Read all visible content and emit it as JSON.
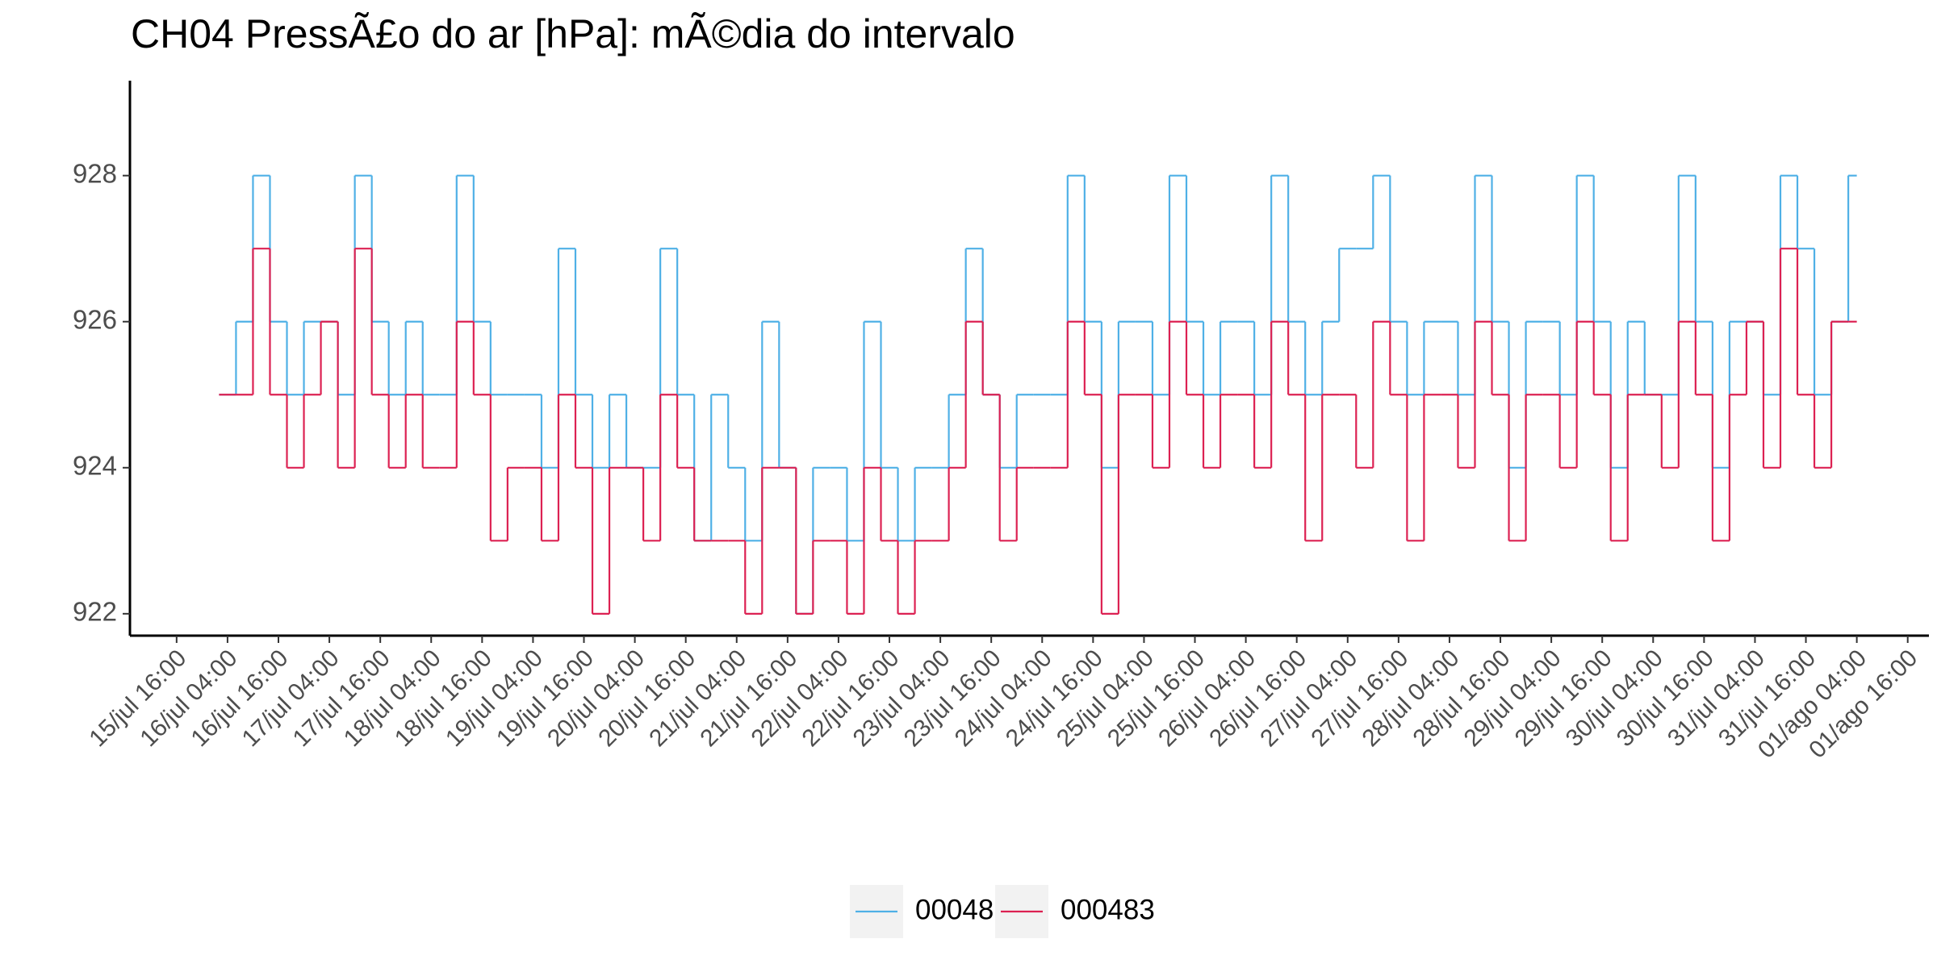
{
  "chart_data": {
    "type": "step",
    "title": "CH04 PressÃ£o do ar [hPa]: mÃ©dia do intervalo",
    "x": [
      "16/jul 02:00",
      "16/jul 06:00",
      "16/jul 10:00",
      "16/jul 14:00",
      "16/jul 18:00",
      "16/jul 22:00",
      "17/jul 02:00",
      "17/jul 06:00",
      "17/jul 10:00",
      "17/jul 14:00",
      "17/jul 18:00",
      "17/jul 22:00",
      "18/jul 02:00",
      "18/jul 06:00",
      "18/jul 10:00",
      "18/jul 14:00",
      "18/jul 18:00",
      "18/jul 22:00",
      "19/jul 02:00",
      "19/jul 06:00",
      "19/jul 10:00",
      "19/jul 14:00",
      "19/jul 18:00",
      "19/jul 22:00",
      "20/jul 02:00",
      "20/jul 06:00",
      "20/jul 10:00",
      "20/jul 14:00",
      "20/jul 18:00",
      "20/jul 22:00",
      "21/jul 02:00",
      "21/jul 06:00",
      "21/jul 10:00",
      "21/jul 14:00",
      "21/jul 18:00",
      "21/jul 22:00",
      "22/jul 02:00",
      "22/jul 06:00",
      "22/jul 10:00",
      "22/jul 14:00",
      "22/jul 18:00",
      "22/jul 22:00",
      "23/jul 02:00",
      "23/jul 06:00",
      "23/jul 10:00",
      "23/jul 14:00",
      "23/jul 18:00",
      "23/jul 22:00",
      "24/jul 02:00",
      "24/jul 06:00",
      "24/jul 10:00",
      "24/jul 14:00",
      "24/jul 18:00",
      "24/jul 22:00",
      "25/jul 02:00",
      "25/jul 06:00",
      "25/jul 10:00",
      "25/jul 14:00",
      "25/jul 18:00",
      "25/jul 22:00",
      "26/jul 02:00",
      "26/jul 06:00",
      "26/jul 10:00",
      "26/jul 14:00",
      "26/jul 18:00",
      "26/jul 22:00",
      "27/jul 02:00",
      "27/jul 06:00",
      "27/jul 10:00",
      "27/jul 14:00",
      "27/jul 18:00",
      "27/jul 22:00",
      "28/jul 02:00",
      "28/jul 06:00",
      "28/jul 10:00",
      "28/jul 14:00",
      "28/jul 18:00",
      "28/jul 22:00",
      "29/jul 02:00",
      "29/jul 06:00",
      "29/jul 10:00",
      "29/jul 14:00",
      "29/jul 18:00",
      "29/jul 22:00",
      "30/jul 02:00",
      "30/jul 06:00",
      "30/jul 10:00",
      "30/jul 14:00",
      "30/jul 18:00",
      "30/jul 22:00",
      "31/jul 02:00",
      "31/jul 06:00",
      "31/jul 10:00",
      "31/jul 14:00",
      "31/jul 18:00",
      "31/jul 22:00",
      "01/ago 02:00"
    ],
    "series": [
      {
        "name": "000482",
        "color": "#4fb0e6",
        "values": [
          925,
          926,
          928,
          926,
          925,
          926,
          926,
          925,
          928,
          926,
          925,
          926,
          925,
          925,
          928,
          926,
          925,
          925,
          925,
          924,
          927,
          925,
          924,
          925,
          924,
          924,
          927,
          925,
          923,
          925,
          924,
          923,
          926,
          924,
          922,
          924,
          924,
          923,
          926,
          924,
          923,
          924,
          924,
          925,
          927,
          925,
          924,
          925,
          925,
          925,
          928,
          926,
          924,
          926,
          926,
          925,
          928,
          926,
          925,
          926,
          926,
          925,
          928,
          926,
          925,
          926,
          927,
          927,
          928,
          926,
          925,
          926,
          926,
          925,
          928,
          926,
          924,
          926,
          926,
          925,
          928,
          926,
          924,
          926,
          925,
          925,
          928,
          926,
          924,
          926,
          926,
          925,
          928,
          927,
          925,
          926,
          928
        ]
      },
      {
        "name": "000483",
        "color": "#dc2152",
        "values": [
          925,
          925,
          927,
          925,
          924,
          925,
          926,
          924,
          927,
          925,
          924,
          925,
          924,
          924,
          926,
          925,
          923,
          924,
          924,
          923,
          925,
          924,
          922,
          924,
          924,
          923,
          925,
          924,
          923,
          923,
          923,
          922,
          924,
          924,
          922,
          923,
          923,
          922,
          924,
          923,
          922,
          923,
          923,
          924,
          926,
          925,
          923,
          924,
          924,
          924,
          926,
          925,
          922,
          925,
          925,
          924,
          926,
          925,
          924,
          925,
          925,
          924,
          926,
          925,
          923,
          925,
          925,
          924,
          926,
          925,
          923,
          925,
          925,
          924,
          926,
          925,
          923,
          925,
          925,
          924,
          926,
          925,
          923,
          925,
          925,
          924,
          926,
          925,
          923,
          925,
          926,
          924,
          927,
          925,
          924,
          926,
          926
        ]
      }
    ],
    "xlim": [
      "15/jul 05:00",
      "01/ago 21:00"
    ],
    "xticks": [
      "15/jul 16:00",
      "16/jul 04:00",
      "16/jul 16:00",
      "17/jul 04:00",
      "17/jul 16:00",
      "18/jul 04:00",
      "18/jul 16:00",
      "19/jul 04:00",
      "19/jul 16:00",
      "20/jul 04:00",
      "20/jul 16:00",
      "21/jul 04:00",
      "21/jul 16:00",
      "22/jul 04:00",
      "22/jul 16:00",
      "23/jul 04:00",
      "23/jul 16:00",
      "24/jul 04:00",
      "24/jul 16:00",
      "25/jul 04:00",
      "25/jul 16:00",
      "26/jul 04:00",
      "26/jul 16:00",
      "27/jul 04:00",
      "27/jul 16:00",
      "28/jul 04:00",
      "28/jul 16:00",
      "29/jul 04:00",
      "29/jul 16:00",
      "30/jul 04:00",
      "30/jul 16:00",
      "31/jul 04:00",
      "31/jul 16:00",
      "01/ago 04:00",
      "01/ago 16:00"
    ],
    "ylim": [
      921.7,
      929.3
    ],
    "yticks": [
      922,
      924,
      926,
      928
    ],
    "legend": "bottom"
  }
}
